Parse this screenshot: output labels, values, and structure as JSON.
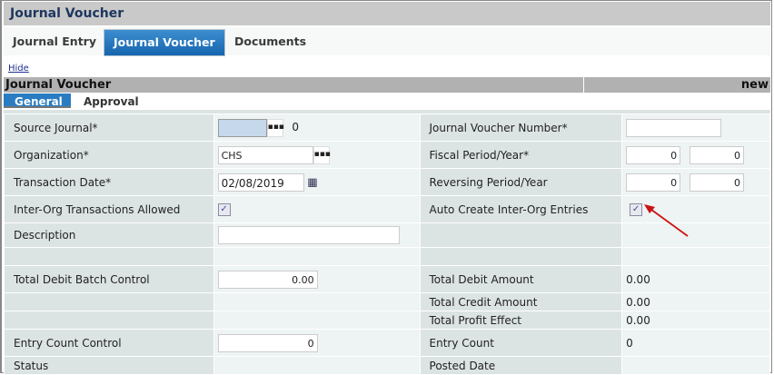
{
  "title": "Journal Voucher",
  "tabs": [
    {
      "label": "Journal Entry"
    },
    {
      "label": "Journal Voucher",
      "active": true
    },
    {
      "label": "Documents"
    }
  ],
  "hide_link": "Hide",
  "section": {
    "title": "Journal Voucher",
    "status": "new"
  },
  "subtabs": [
    {
      "label": "General",
      "active": true
    },
    {
      "label": "Approval"
    }
  ],
  "fields": {
    "source_journal": {
      "label": "Source Journal*",
      "value": "",
      "extra": "0"
    },
    "organization": {
      "label": "Organization*",
      "value": "CHS"
    },
    "transaction_date": {
      "label": "Transaction Date*",
      "value": "02/08/2019"
    },
    "inter_org_allowed": {
      "label": "Inter-Org Transactions Allowed",
      "checked": true
    },
    "description": {
      "label": "Description",
      "value": ""
    },
    "total_debit_batch": {
      "label": "Total Debit Batch Control",
      "value": "0.00"
    },
    "entry_count_control": {
      "label": "Entry Count Control",
      "value": "0"
    },
    "status": {
      "label": "Status"
    },
    "jv_number": {
      "label": "Journal Voucher Number*",
      "value": ""
    },
    "fiscal": {
      "label": "Fiscal Period/Year*",
      "period": "0",
      "year": "0"
    },
    "reversing": {
      "label": "Reversing Period/Year",
      "period": "0",
      "year": "0"
    },
    "auto_create": {
      "label": "Auto Create Inter-Org Entries",
      "checked": true
    },
    "total_debit_amount": {
      "label": "Total Debit Amount",
      "value": "0.00"
    },
    "total_credit_amount": {
      "label": "Total Credit Amount",
      "value": "0.00"
    },
    "total_profit": {
      "label": "Total Profit Effect",
      "value": "0.00"
    },
    "entry_count": {
      "label": "Entry Count",
      "value": "0"
    },
    "posted_date": {
      "label": "Posted Date"
    }
  },
  "icons": {
    "lookup": "ellipsis-icon",
    "calendar": "calendar-icon",
    "check": "checkmark-icon",
    "annotation": "red-arrow"
  },
  "colors": {
    "accent": "#1e73b8",
    "arrow": "#cc1111"
  }
}
